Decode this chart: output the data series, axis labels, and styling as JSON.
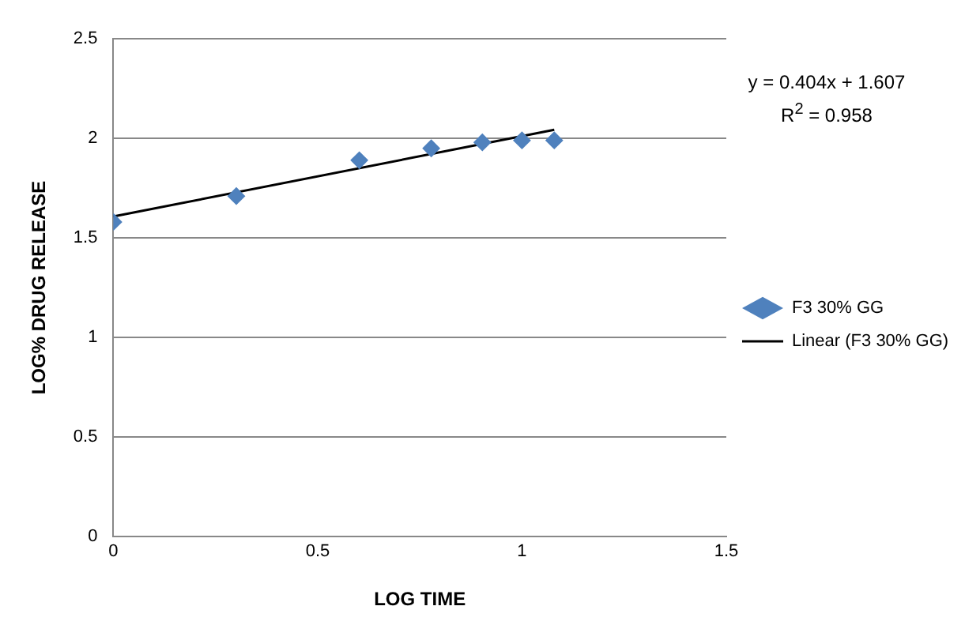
{
  "chart_data": {
    "type": "scatter",
    "xlabel": "LOG TIME",
    "ylabel": "LOG% DRUG RELEASE",
    "x": [
      0,
      0.301,
      0.602,
      0.778,
      0.903,
      1.0,
      1.079
    ],
    "series": [
      {
        "name": "F3 30% GG",
        "color": "#4f81bd",
        "values": [
          1.58,
          1.71,
          1.89,
          1.95,
          1.98,
          1.99,
          1.99
        ],
        "marker": "diamond"
      },
      {
        "name": "Linear (F3 30% GG)",
        "type": "line",
        "color": "#000000",
        "x": [
          0,
          1.079
        ],
        "values": [
          1.607,
          2.043
        ],
        "marker": "none"
      }
    ],
    "xlim": [
      0,
      1.5
    ],
    "xticks": [
      0,
      0.5,
      1,
      1.5
    ],
    "ylim": [
      0,
      2.5
    ],
    "yticks": [
      0,
      0.5,
      1,
      1.5,
      2,
      2.5
    ],
    "grid": "y",
    "legend": "right",
    "annotations": [
      "y = 0.404x + 1.607",
      "R$^{2}$ = 0.958"
    ]
  }
}
